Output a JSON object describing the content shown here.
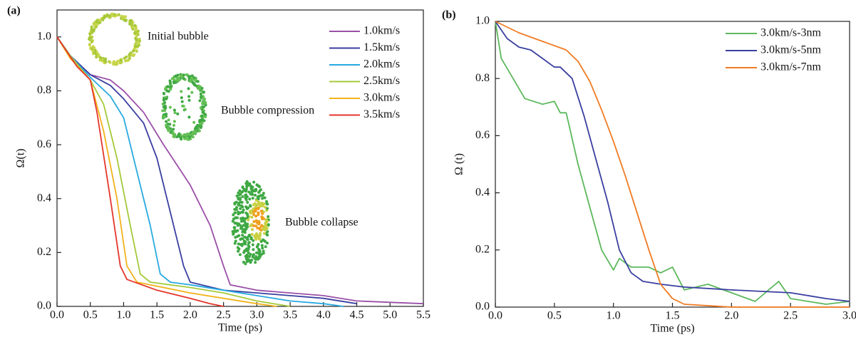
{
  "chart_data": [
    {
      "type": "line",
      "label": "(a)",
      "xlabel": "Time (ps)",
      "ylabel": "Ω(t)",
      "annotations": [
        "Initial bubble",
        "Bubble compression",
        "Bubble collapse"
      ],
      "xlim": [
        0,
        5.5
      ],
      "ylim": [
        0,
        1.1
      ],
      "xticks": [
        {
          "value": 0,
          "label": "0.0"
        },
        0.5,
        {
          "value": 1,
          "label": "1.0"
        },
        1.5,
        {
          "value": 2,
          "label": "2.0"
        },
        2.5,
        {
          "value": 3,
          "label": "3.0"
        },
        3.5,
        {
          "value": 4,
          "label": "4.0"
        },
        4.5,
        {
          "value": 5,
          "label": "5.0"
        },
        5.5
      ],
      "yticks": [
        {
          "value": 0,
          "label": "0.0"
        },
        0.2,
        0.4,
        0.6,
        0.8,
        {
          "value": 1,
          "label": "1.0"
        }
      ],
      "legend": "upper right",
      "series": [
        {
          "name": "1.0km/s",
          "color": "#9b4fa8",
          "x": [
            0,
            0.2,
            0.5,
            0.8,
            1.0,
            1.3,
            1.6,
            2.0,
            2.3,
            2.5,
            2.6,
            3.0,
            3.5,
            4.0,
            4.5,
            5.0,
            5.5
          ],
          "values": [
            1.0,
            0.93,
            0.86,
            0.84,
            0.8,
            0.72,
            0.6,
            0.45,
            0.3,
            0.15,
            0.08,
            0.06,
            0.05,
            0.04,
            0.02,
            0.015,
            0.01
          ]
        },
        {
          "name": "1.5km/s",
          "color": "#3a3fa0",
          "x": [
            0,
            0.2,
            0.5,
            0.8,
            1.0,
            1.3,
            1.5,
            1.7,
            1.9,
            2.0,
            2.5,
            3.0,
            3.5,
            4.0,
            4.5
          ],
          "values": [
            1.0,
            0.93,
            0.86,
            0.82,
            0.77,
            0.68,
            0.55,
            0.35,
            0.15,
            0.09,
            0.06,
            0.05,
            0.04,
            0.03,
            0.01
          ]
        },
        {
          "name": "2.0km/s",
          "color": "#27a9e1",
          "x": [
            0,
            0.2,
            0.5,
            0.8,
            1.0,
            1.2,
            1.4,
            1.55,
            1.7,
            2.0,
            2.5,
            3.0,
            3.5,
            4.0,
            4.3
          ],
          "values": [
            1.0,
            0.93,
            0.85,
            0.78,
            0.7,
            0.5,
            0.3,
            0.12,
            0.09,
            0.08,
            0.06,
            0.04,
            0.02,
            0.01,
            0
          ]
        },
        {
          "name": "2.5km/s",
          "color": "#a4c93a",
          "x": [
            0,
            0.2,
            0.5,
            0.7,
            0.9,
            1.1,
            1.25,
            1.4,
            2.0,
            2.5,
            3.0,
            3.5
          ],
          "values": [
            1.0,
            0.93,
            0.84,
            0.75,
            0.55,
            0.3,
            0.12,
            0.09,
            0.07,
            0.05,
            0.02,
            0
          ]
        },
        {
          "name": "3.0km/s",
          "color": "#f2b21b",
          "x": [
            0,
            0.2,
            0.5,
            0.7,
            0.9,
            1.05,
            1.2,
            1.6,
            2.0,
            2.5,
            3.0,
            3.3
          ],
          "values": [
            1.0,
            0.92,
            0.84,
            0.65,
            0.4,
            0.15,
            0.09,
            0.07,
            0.05,
            0.03,
            0.01,
            0
          ]
        },
        {
          "name": "3.5km/s",
          "color": "#e5352b",
          "x": [
            0,
            0.3,
            0.5,
            0.6,
            0.8,
            0.95,
            1.05,
            1.5,
            2.0,
            2.3,
            2.5
          ],
          "values": [
            1.0,
            0.89,
            0.84,
            0.72,
            0.4,
            0.15,
            0.1,
            0.06,
            0.03,
            0.01,
            0
          ]
        }
      ]
    },
    {
      "type": "line",
      "label": "(b)",
      "xlabel": "Time (ps)",
      "ylabel": "Ω (t)",
      "xlim": [
        0,
        3.0
      ],
      "ylim": [
        0,
        1.0
      ],
      "xticks": [
        {
          "value": 0,
          "label": "0.0"
        },
        0.5,
        {
          "value": 1,
          "label": "1.0"
        },
        1.5,
        {
          "value": 2,
          "label": "2.0"
        },
        2.5,
        {
          "value": 3,
          "label": "3.0"
        }
      ],
      "yticks": [
        {
          "value": 0,
          "label": "0.0"
        },
        0.2,
        0.4,
        0.6,
        0.8,
        {
          "value": 1,
          "label": "1.0"
        }
      ],
      "legend": "upper right",
      "series": [
        {
          "name": "3.0km/s-3nm",
          "color": "#5cb85c",
          "x": [
            0,
            0.05,
            0.15,
            0.25,
            0.4,
            0.5,
            0.55,
            0.6,
            0.7,
            0.8,
            0.9,
            1.0,
            1.05,
            1.15,
            1.3,
            1.4,
            1.5,
            1.6,
            1.8,
            2.0,
            2.2,
            2.4,
            2.5,
            2.8,
            3.0
          ],
          "values": [
            1.0,
            0.87,
            0.8,
            0.73,
            0.71,
            0.72,
            0.68,
            0.68,
            0.5,
            0.35,
            0.2,
            0.13,
            0.17,
            0.14,
            0.14,
            0.12,
            0.14,
            0.06,
            0.08,
            0.05,
            0.02,
            0.09,
            0.03,
            0.01,
            0.02
          ]
        },
        {
          "name": "3.0km/s-5nm",
          "color": "#3a3fa0",
          "x": [
            0,
            0.1,
            0.2,
            0.3,
            0.4,
            0.5,
            0.55,
            0.65,
            0.75,
            0.85,
            0.95,
            1.05,
            1.15,
            1.25,
            1.4,
            1.6,
            2.0,
            2.5,
            2.8,
            3.0
          ],
          "values": [
            1.0,
            0.94,
            0.91,
            0.9,
            0.87,
            0.84,
            0.84,
            0.8,
            0.67,
            0.52,
            0.37,
            0.2,
            0.12,
            0.09,
            0.08,
            0.07,
            0.06,
            0.05,
            0.03,
            0.02
          ]
        },
        {
          "name": "3.0km/s-7nm",
          "color": "#f07b23",
          "x": [
            0,
            0.2,
            0.4,
            0.6,
            0.7,
            0.8,
            0.9,
            1.0,
            1.1,
            1.2,
            1.3,
            1.4,
            1.5,
            1.6,
            2.0,
            3.0
          ],
          "values": [
            1.0,
            0.96,
            0.93,
            0.9,
            0.86,
            0.79,
            0.69,
            0.58,
            0.46,
            0.33,
            0.2,
            0.08,
            0.03,
            0.01,
            0.0,
            0.0
          ]
        }
      ]
    }
  ]
}
